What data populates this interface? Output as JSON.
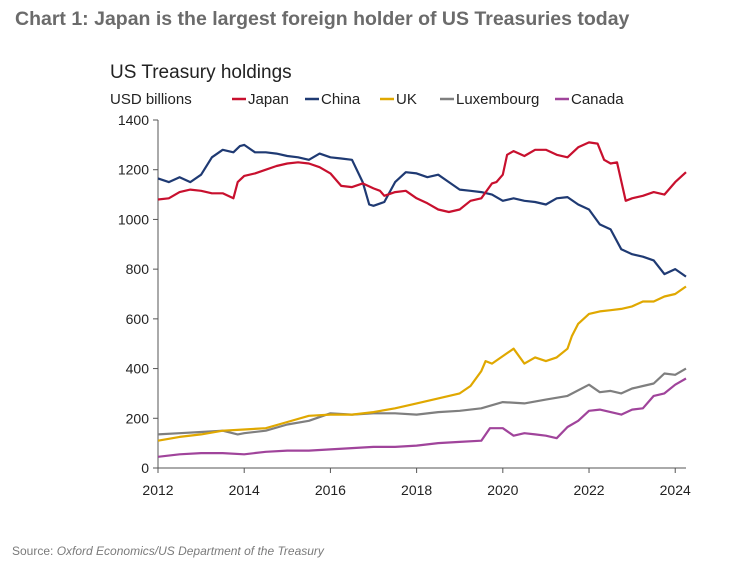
{
  "header": {
    "title": "Chart 1: Japan is the largest foreign holder of US Treasuries today"
  },
  "source": {
    "label": "Source: ",
    "text": "Oxford Economics/US Department of the Treasury"
  },
  "chart_data": {
    "type": "line",
    "title": "US Treasury holdings",
    "ylabel": "USD billions",
    "xlabel": "",
    "xlim": [
      2012.0,
      2024.25
    ],
    "ylim": [
      0,
      1400
    ],
    "xticks": [
      2012,
      2014,
      2016,
      2018,
      2020,
      2022,
      2024
    ],
    "yticks": [
      0,
      200,
      400,
      600,
      800,
      1000,
      1200,
      1400
    ],
    "grid": false,
    "legend": "top",
    "series": [
      {
        "name": "Japan",
        "color": "#c8102e",
        "points": [
          [
            2012.0,
            1080
          ],
          [
            2012.25,
            1085
          ],
          [
            2012.5,
            1110
          ],
          [
            2012.75,
            1120
          ],
          [
            2013.0,
            1115
          ],
          [
            2013.25,
            1105
          ],
          [
            2013.5,
            1105
          ],
          [
            2013.75,
            1085
          ],
          [
            2013.85,
            1150
          ],
          [
            2014.0,
            1175
          ],
          [
            2014.25,
            1185
          ],
          [
            2014.5,
            1200
          ],
          [
            2014.75,
            1215
          ],
          [
            2015.0,
            1225
          ],
          [
            2015.25,
            1230
          ],
          [
            2015.5,
            1225
          ],
          [
            2015.75,
            1210
          ],
          [
            2016.0,
            1185
          ],
          [
            2016.25,
            1135
          ],
          [
            2016.5,
            1130
          ],
          [
            2016.75,
            1145
          ],
          [
            2017.0,
            1125
          ],
          [
            2017.15,
            1115
          ],
          [
            2017.25,
            1095
          ],
          [
            2017.5,
            1110
          ],
          [
            2017.75,
            1115
          ],
          [
            2018.0,
            1085
          ],
          [
            2018.25,
            1065
          ],
          [
            2018.5,
            1040
          ],
          [
            2018.75,
            1030
          ],
          [
            2019.0,
            1040
          ],
          [
            2019.25,
            1075
          ],
          [
            2019.5,
            1085
          ],
          [
            2019.75,
            1145
          ],
          [
            2019.85,
            1150
          ],
          [
            2020.0,
            1180
          ],
          [
            2020.1,
            1260
          ],
          [
            2020.25,
            1275
          ],
          [
            2020.5,
            1255
          ],
          [
            2020.75,
            1280
          ],
          [
            2021.0,
            1280
          ],
          [
            2021.25,
            1260
          ],
          [
            2021.5,
            1250
          ],
          [
            2021.75,
            1290
          ],
          [
            2022.0,
            1310
          ],
          [
            2022.2,
            1305
          ],
          [
            2022.35,
            1240
          ],
          [
            2022.5,
            1225
          ],
          [
            2022.65,
            1230
          ],
          [
            2022.85,
            1075
          ],
          [
            2023.0,
            1085
          ],
          [
            2023.25,
            1095
          ],
          [
            2023.5,
            1110
          ],
          [
            2023.75,
            1100
          ],
          [
            2024.0,
            1150
          ],
          [
            2024.25,
            1190
          ]
        ]
      },
      {
        "name": "China",
        "color": "#1f3a73",
        "points": [
          [
            2012.0,
            1165
          ],
          [
            2012.25,
            1150
          ],
          [
            2012.5,
            1170
          ],
          [
            2012.75,
            1150
          ],
          [
            2013.0,
            1180
          ],
          [
            2013.25,
            1250
          ],
          [
            2013.5,
            1280
          ],
          [
            2013.75,
            1270
          ],
          [
            2013.9,
            1295
          ],
          [
            2014.0,
            1300
          ],
          [
            2014.25,
            1270
          ],
          [
            2014.5,
            1270
          ],
          [
            2014.75,
            1265
          ],
          [
            2015.0,
            1255
          ],
          [
            2015.25,
            1250
          ],
          [
            2015.5,
            1240
          ],
          [
            2015.75,
            1265
          ],
          [
            2016.0,
            1250
          ],
          [
            2016.25,
            1245
          ],
          [
            2016.5,
            1240
          ],
          [
            2016.75,
            1150
          ],
          [
            2016.9,
            1060
          ],
          [
            2017.0,
            1055
          ],
          [
            2017.25,
            1070
          ],
          [
            2017.5,
            1150
          ],
          [
            2017.75,
            1190
          ],
          [
            2018.0,
            1185
          ],
          [
            2018.25,
            1170
          ],
          [
            2018.5,
            1180
          ],
          [
            2018.75,
            1150
          ],
          [
            2019.0,
            1120
          ],
          [
            2019.25,
            1115
          ],
          [
            2019.5,
            1110
          ],
          [
            2019.75,
            1100
          ],
          [
            2020.0,
            1075
          ],
          [
            2020.25,
            1085
          ],
          [
            2020.5,
            1075
          ],
          [
            2020.75,
            1070
          ],
          [
            2021.0,
            1060
          ],
          [
            2021.25,
            1085
          ],
          [
            2021.5,
            1090
          ],
          [
            2021.75,
            1060
          ],
          [
            2022.0,
            1040
          ],
          [
            2022.25,
            980
          ],
          [
            2022.5,
            960
          ],
          [
            2022.75,
            880
          ],
          [
            2023.0,
            860
          ],
          [
            2023.25,
            850
          ],
          [
            2023.5,
            835
          ],
          [
            2023.75,
            780
          ],
          [
            2024.0,
            800
          ],
          [
            2024.25,
            770
          ]
        ]
      },
      {
        "name": "UK",
        "color": "#e0a800",
        "points": [
          [
            2012.0,
            110
          ],
          [
            2012.5,
            125
          ],
          [
            2013.0,
            135
          ],
          [
            2013.5,
            150
          ],
          [
            2014.0,
            155
          ],
          [
            2014.5,
            160
          ],
          [
            2015.0,
            185
          ],
          [
            2015.5,
            210
          ],
          [
            2016.0,
            215
          ],
          [
            2016.5,
            215
          ],
          [
            2017.0,
            225
          ],
          [
            2017.5,
            240
          ],
          [
            2018.0,
            260
          ],
          [
            2018.5,
            280
          ],
          [
            2019.0,
            300
          ],
          [
            2019.25,
            330
          ],
          [
            2019.5,
            390
          ],
          [
            2019.6,
            430
          ],
          [
            2019.75,
            420
          ],
          [
            2020.0,
            450
          ],
          [
            2020.25,
            480
          ],
          [
            2020.5,
            420
          ],
          [
            2020.75,
            445
          ],
          [
            2021.0,
            430
          ],
          [
            2021.25,
            445
          ],
          [
            2021.5,
            480
          ],
          [
            2021.6,
            530
          ],
          [
            2021.75,
            580
          ],
          [
            2022.0,
            620
          ],
          [
            2022.25,
            630
          ],
          [
            2022.5,
            635
          ],
          [
            2022.75,
            640
          ],
          [
            2023.0,
            650
          ],
          [
            2023.25,
            670
          ],
          [
            2023.5,
            670
          ],
          [
            2023.75,
            690
          ],
          [
            2024.0,
            700
          ],
          [
            2024.25,
            730
          ]
        ]
      },
      {
        "name": "Luxembourg",
        "color": "#7f7f7f",
        "points": [
          [
            2012.0,
            135
          ],
          [
            2012.5,
            140
          ],
          [
            2013.0,
            145
          ],
          [
            2013.5,
            150
          ],
          [
            2013.85,
            135
          ],
          [
            2014.0,
            140
          ],
          [
            2014.5,
            150
          ],
          [
            2015.0,
            175
          ],
          [
            2015.5,
            190
          ],
          [
            2016.0,
            220
          ],
          [
            2016.5,
            215
          ],
          [
            2017.0,
            220
          ],
          [
            2017.5,
            220
          ],
          [
            2018.0,
            215
          ],
          [
            2018.5,
            225
          ],
          [
            2019.0,
            230
          ],
          [
            2019.5,
            240
          ],
          [
            2020.0,
            265
          ],
          [
            2020.5,
            260
          ],
          [
            2021.0,
            275
          ],
          [
            2021.5,
            290
          ],
          [
            2022.0,
            335
          ],
          [
            2022.25,
            305
          ],
          [
            2022.5,
            310
          ],
          [
            2022.75,
            300
          ],
          [
            2023.0,
            320
          ],
          [
            2023.25,
            330
          ],
          [
            2023.5,
            340
          ],
          [
            2023.75,
            380
          ],
          [
            2024.0,
            375
          ],
          [
            2024.25,
            400
          ]
        ]
      },
      {
        "name": "Canada",
        "color": "#a0449b",
        "points": [
          [
            2012.0,
            45
          ],
          [
            2012.5,
            55
          ],
          [
            2013.0,
            60
          ],
          [
            2013.5,
            60
          ],
          [
            2014.0,
            55
          ],
          [
            2014.5,
            65
          ],
          [
            2015.0,
            70
          ],
          [
            2015.5,
            70
          ],
          [
            2016.0,
            75
          ],
          [
            2016.5,
            80
          ],
          [
            2017.0,
            85
          ],
          [
            2017.5,
            85
          ],
          [
            2018.0,
            90
          ],
          [
            2018.5,
            100
          ],
          [
            2019.0,
            105
          ],
          [
            2019.5,
            110
          ],
          [
            2019.7,
            160
          ],
          [
            2020.0,
            160
          ],
          [
            2020.25,
            130
          ],
          [
            2020.5,
            140
          ],
          [
            2020.75,
            135
          ],
          [
            2021.0,
            130
          ],
          [
            2021.25,
            120
          ],
          [
            2021.5,
            165
          ],
          [
            2021.75,
            190
          ],
          [
            2022.0,
            230
          ],
          [
            2022.25,
            235
          ],
          [
            2022.5,
            225
          ],
          [
            2022.75,
            215
          ],
          [
            2023.0,
            235
          ],
          [
            2023.25,
            240
          ],
          [
            2023.5,
            290
          ],
          [
            2023.75,
            300
          ],
          [
            2024.0,
            335
          ],
          [
            2024.25,
            360
          ]
        ]
      }
    ]
  }
}
